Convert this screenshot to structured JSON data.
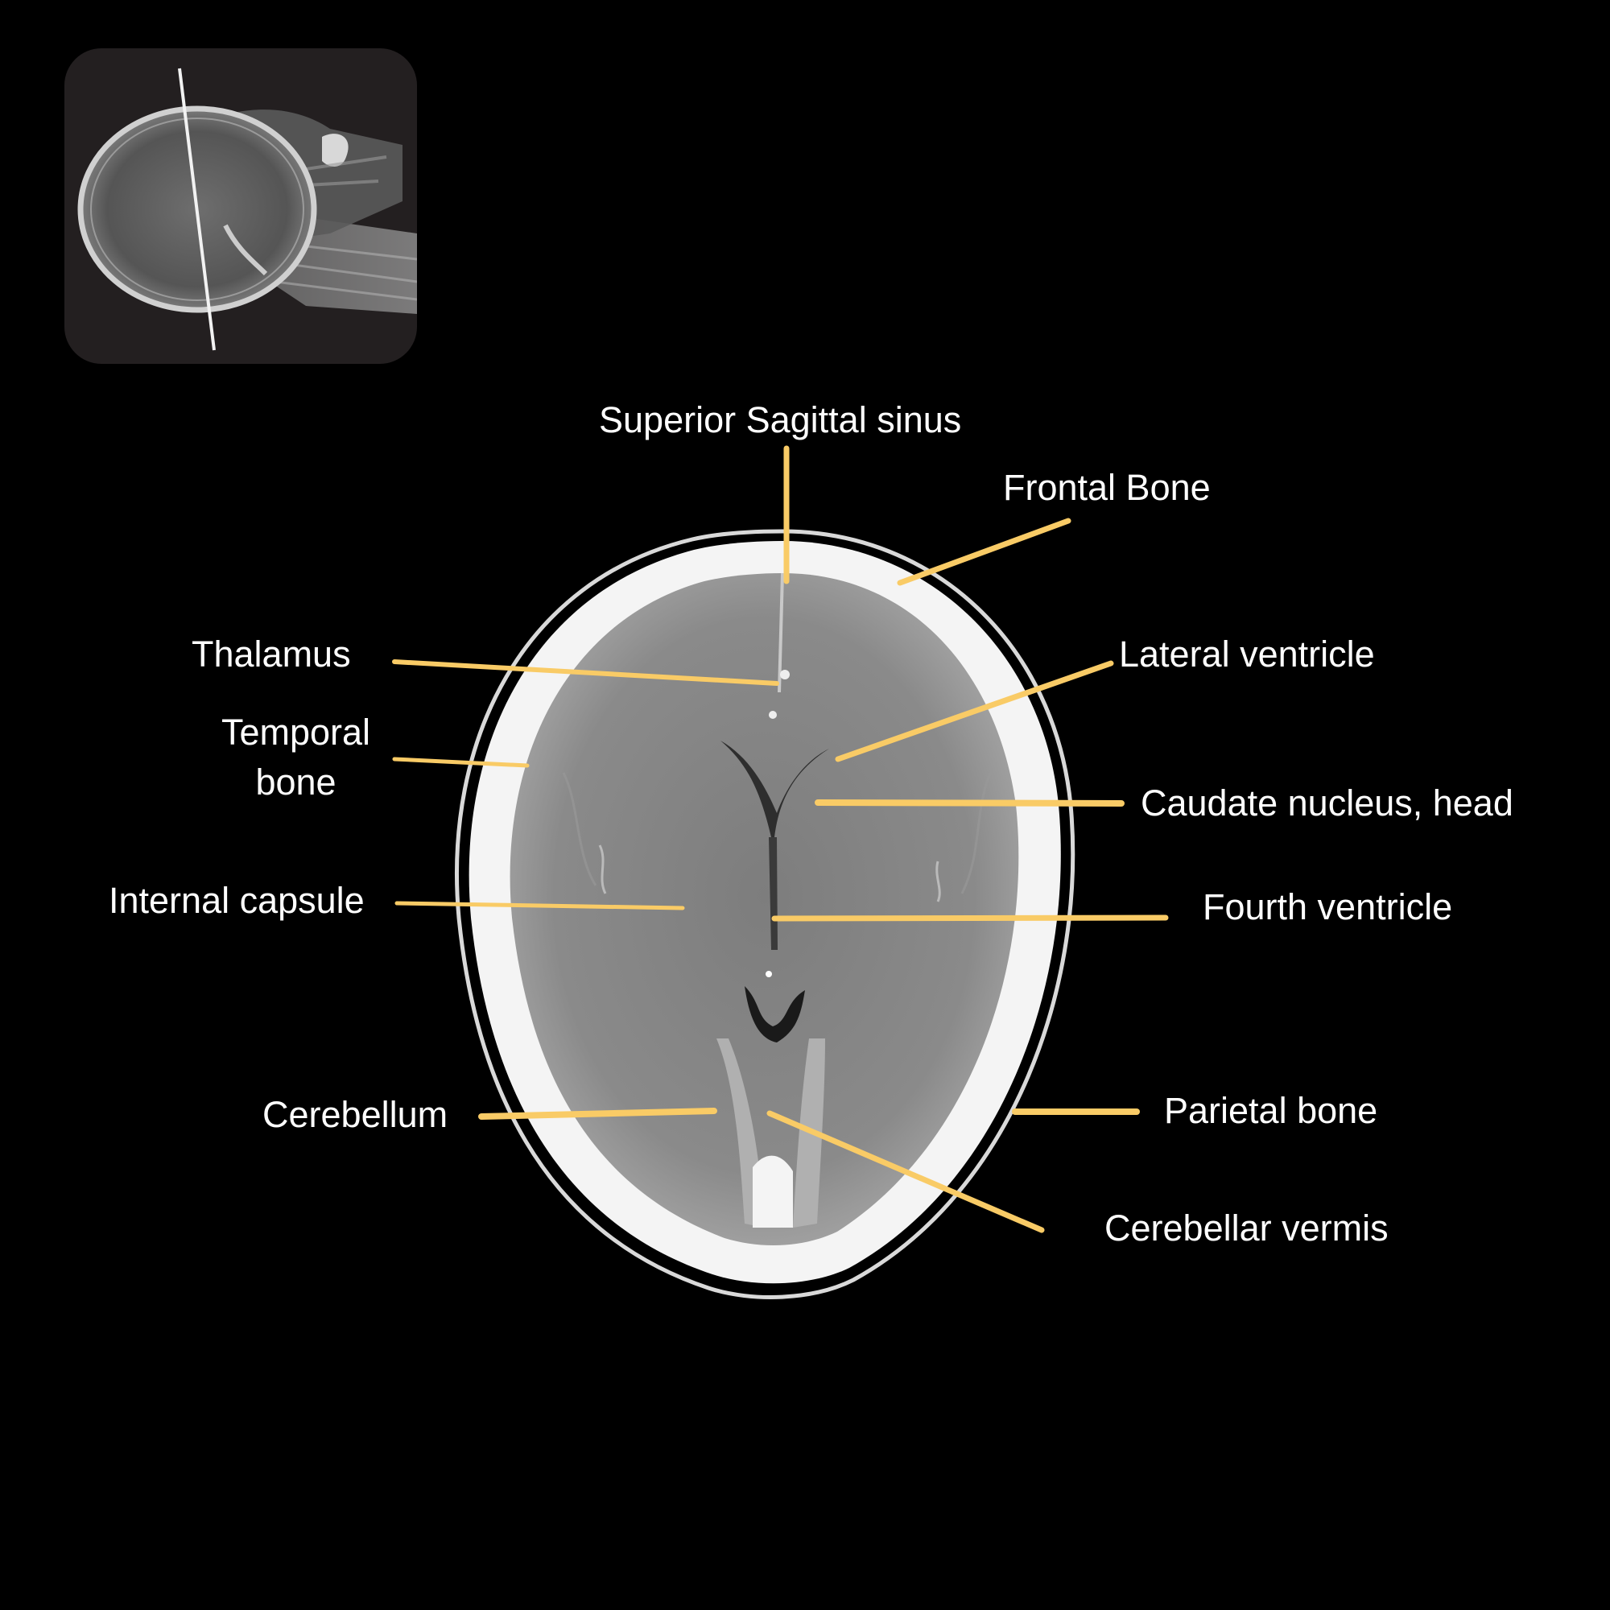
{
  "colors": {
    "background": "#000000",
    "leader_line": "#f9cb66",
    "label_text": "#ffffff",
    "scout_panel": "#231f20"
  },
  "scout_image": {
    "icon": "lateral-skull-scout-xray-with-slice-line"
  },
  "ct_image": {
    "icon": "axial-ct-brain-slice"
  },
  "labels": {
    "superior_sagittal_sinus": "Superior Sagittal sinus",
    "frontal_bone": "Frontal Bone",
    "thalamus": "Thalamus",
    "lateral_ventricle": "Lateral ventricle",
    "temporal_bone_line1": "Temporal",
    "temporal_bone_line2": "bone",
    "caudate_nucleus_head": "Caudate nucleus, head",
    "internal_capsule": "Internal capsule",
    "fourth_ventricle": "Fourth ventricle",
    "cerebellum": "Cerebellum",
    "parietal_bone": "Parietal bone",
    "cerebellar_vermis": "Cerebellar vermis"
  }
}
